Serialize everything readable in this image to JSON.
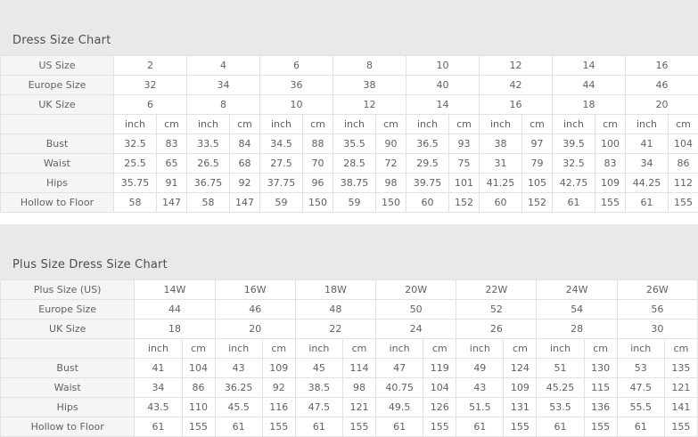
{
  "page": {
    "colors": {
      "title_band_bg": "#e9e9e9",
      "label_cell_bg": "#f5f5f5",
      "data_cell_bg": "#ffffff",
      "border": "#e2e2e2",
      "text": "#616161",
      "title_text": "#4e4e4e"
    },
    "charts": [
      {
        "title": "Dress Size Chart",
        "unit_labels": [
          "inch",
          "cm"
        ],
        "size_rows": [
          {
            "label": "US Size",
            "values": [
              "2",
              "4",
              "6",
              "8",
              "10",
              "12",
              "14",
              "16"
            ]
          },
          {
            "label": "Europe Size",
            "values": [
              "32",
              "34",
              "36",
              "38",
              "40",
              "42",
              "44",
              "46"
            ]
          },
          {
            "label": "UK Size",
            "values": [
              "6",
              "8",
              "10",
              "12",
              "14",
              "16",
              "18",
              "20"
            ]
          }
        ],
        "measure_rows": [
          {
            "label": "Bust",
            "pairs": [
              [
                "32.5",
                "83"
              ],
              [
                "33.5",
                "84"
              ],
              [
                "34.5",
                "88"
              ],
              [
                "35.5",
                "90"
              ],
              [
                "36.5",
                "93"
              ],
              [
                "38",
                "97"
              ],
              [
                "39.5",
                "100"
              ],
              [
                "41",
                "104"
              ]
            ]
          },
          {
            "label": "Waist",
            "pairs": [
              [
                "25.5",
                "65"
              ],
              [
                "26.5",
                "68"
              ],
              [
                "27.5",
                "70"
              ],
              [
                "28.5",
                "72"
              ],
              [
                "29.5",
                "75"
              ],
              [
                "31",
                "79"
              ],
              [
                "32.5",
                "83"
              ],
              [
                "34",
                "86"
              ]
            ]
          },
          {
            "label": "Hips",
            "pairs": [
              [
                "35.75",
                "91"
              ],
              [
                "36.75",
                "92"
              ],
              [
                "37.75",
                "96"
              ],
              [
                "38.75",
                "98"
              ],
              [
                "39.75",
                "101"
              ],
              [
                "41.25",
                "105"
              ],
              [
                "42.75",
                "109"
              ],
              [
                "44.25",
                "112"
              ]
            ]
          },
          {
            "label": "Hollow to Floor",
            "pairs": [
              [
                "58",
                "147"
              ],
              [
                "58",
                "147"
              ],
              [
                "59",
                "150"
              ],
              [
                "59",
                "150"
              ],
              [
                "60",
                "152"
              ],
              [
                "60",
                "152"
              ],
              [
                "61",
                "155"
              ],
              [
                "61",
                "155"
              ]
            ]
          }
        ]
      },
      {
        "title": "Plus Size Dress Size Chart",
        "unit_labels": [
          "inch",
          "cm"
        ],
        "size_rows": [
          {
            "label": "Plus Size (US)",
            "values": [
              "14W",
              "16W",
              "18W",
              "20W",
              "22W",
              "24W",
              "26W"
            ]
          },
          {
            "label": "Europe Size",
            "values": [
              "44",
              "46",
              "48",
              "50",
              "52",
              "54",
              "56"
            ]
          },
          {
            "label": "UK Size",
            "values": [
              "18",
              "20",
              "22",
              "24",
              "26",
              "28",
              "30"
            ]
          }
        ],
        "measure_rows": [
          {
            "label": "Bust",
            "pairs": [
              [
                "41",
                "104"
              ],
              [
                "43",
                "109"
              ],
              [
                "45",
                "114"
              ],
              [
                "47",
                "119"
              ],
              [
                "49",
                "124"
              ],
              [
                "51",
                "130"
              ],
              [
                "53",
                "135"
              ]
            ]
          },
          {
            "label": "Waist",
            "pairs": [
              [
                "34",
                "86"
              ],
              [
                "36.25",
                "92"
              ],
              [
                "38.5",
                "98"
              ],
              [
                "40.75",
                "104"
              ],
              [
                "43",
                "109"
              ],
              [
                "45.25",
                "115"
              ],
              [
                "47.5",
                "121"
              ]
            ]
          },
          {
            "label": "Hips",
            "pairs": [
              [
                "43.5",
                "110"
              ],
              [
                "45.5",
                "116"
              ],
              [
                "47.5",
                "121"
              ],
              [
                "49.5",
                "126"
              ],
              [
                "51.5",
                "131"
              ],
              [
                "53.5",
                "136"
              ],
              [
                "55.5",
                "141"
              ]
            ]
          },
          {
            "label": "Hollow to Floor",
            "pairs": [
              [
                "61",
                "155"
              ],
              [
                "61",
                "155"
              ],
              [
                "61",
                "155"
              ],
              [
                "61",
                "155"
              ],
              [
                "61",
                "155"
              ],
              [
                "61",
                "155"
              ],
              [
                "61",
                "155"
              ]
            ]
          }
        ]
      }
    ]
  }
}
